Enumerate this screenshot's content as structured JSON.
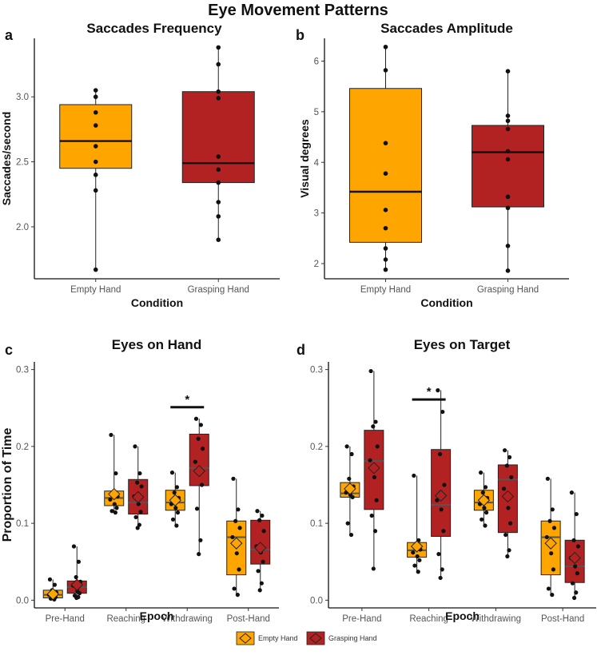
{
  "title": "Eye Movement Patterns",
  "colors": {
    "empty_hand": "#FFA500",
    "grasping_hand": "#B22222",
    "box_stroke": "#222222",
    "mean_line": "#555555"
  },
  "legend": {
    "items": [
      {
        "label": "Empty Hand",
        "color": "#FFA500"
      },
      {
        "label": "Grasping Hand",
        "color": "#B22222"
      }
    ]
  },
  "chart_data": [
    {
      "id": "a",
      "letter": "a",
      "type": "box",
      "title": "Saccades Frequency",
      "xlabel": "Condition",
      "ylabel": "Saccades/second",
      "ylim": [
        1.6,
        3.45
      ],
      "yticks": [
        2.0,
        2.5,
        3.0
      ],
      "ytick_labels": [
        "2.0",
        "2.5",
        "3.0"
      ],
      "categories": [
        "Empty Hand",
        "Grasping Hand"
      ],
      "boxes": [
        {
          "category": "Empty Hand",
          "color": "#FFA500",
          "min": 1.67,
          "q1": 2.45,
          "median": 2.66,
          "q3": 2.94,
          "max": 3.05,
          "points": [
            3.05,
            3.0,
            2.88,
            2.78,
            2.62,
            2.5,
            2.4,
            2.28,
            1.67
          ]
        },
        {
          "category": "Grasping Hand",
          "color": "#B22222",
          "min": 1.9,
          "q1": 2.34,
          "median": 2.49,
          "q3": 3.04,
          "max": 3.38,
          "points": [
            3.38,
            3.25,
            3.04,
            2.99,
            2.54,
            2.44,
            2.34,
            2.19,
            2.08,
            1.9
          ]
        }
      ]
    },
    {
      "id": "b",
      "letter": "b",
      "type": "box",
      "title": "Saccades Amplitude",
      "xlabel": "Condition",
      "ylabel": "Visual degrees",
      "ylim": [
        1.7,
        6.45
      ],
      "yticks": [
        2,
        3,
        4,
        5,
        6
      ],
      "ytick_labels": [
        "2",
        "3",
        "4",
        "5",
        "6"
      ],
      "categories": [
        "Empty Hand",
        "Grasping Hand"
      ],
      "boxes": [
        {
          "category": "Empty Hand",
          "color": "#FFA500",
          "min": 1.88,
          "q1": 2.42,
          "median": 3.42,
          "q3": 5.46,
          "max": 6.28,
          "points": [
            6.28,
            5.82,
            4.38,
            3.78,
            3.06,
            2.7,
            2.3,
            2.08,
            1.88
          ]
        },
        {
          "category": "Grasping Hand",
          "color": "#B22222",
          "min": 1.86,
          "q1": 3.12,
          "median": 4.2,
          "q3": 4.73,
          "max": 5.8,
          "points": [
            5.8,
            4.92,
            4.82,
            4.66,
            4.22,
            4.06,
            3.32,
            3.1,
            2.35,
            1.86
          ]
        }
      ]
    },
    {
      "id": "c",
      "letter": "c",
      "type": "grouped-box",
      "title": "Eyes on Hand",
      "xlabel": "Epoch",
      "ylabel": "Proportion of Time",
      "ylim": [
        -0.01,
        0.31
      ],
      "yticks": [
        0.0,
        0.1,
        0.2,
        0.3
      ],
      "ytick_labels": [
        "0.0",
        "0.1",
        "0.2",
        "0.3"
      ],
      "categories": [
        "Pre-Hand",
        "Reaching",
        "Withdrawing",
        "Post-Hand"
      ],
      "significance": {
        "category": "Withdrawing",
        "label": "*",
        "y": 0.251
      },
      "groups": [
        {
          "category": "Pre-Hand",
          "boxes": [
            {
              "series": "Empty Hand",
              "color": "#FFA500",
              "min": 0.001,
              "q1": 0.003,
              "median": 0.007,
              "q3": 0.013,
              "max": 0.027,
              "mean": 0.008,
              "points": [
                0.027,
                0.02,
                0.013,
                0.01,
                0.007,
                0.005,
                0.004,
                0.002,
                0.001
              ]
            },
            {
              "series": "Grasping Hand",
              "color": "#B22222",
              "min": 0.003,
              "q1": 0.009,
              "median": 0.017,
              "q3": 0.025,
              "max": 0.07,
              "mean": 0.02,
              "points": [
                0.07,
                0.05,
                0.03,
                0.024,
                0.019,
                0.012,
                0.009,
                0.006,
                0.004,
                0.003
              ]
            }
          ]
        },
        {
          "category": "Reaching",
          "boxes": [
            {
              "series": "Empty Hand",
              "color": "#FFA500",
              "min": 0.114,
              "q1": 0.123,
              "median": 0.133,
              "q3": 0.142,
              "max": 0.215,
              "mean": 0.138,
              "points": [
                0.215,
                0.165,
                0.141,
                0.135,
                0.131,
                0.125,
                0.12,
                0.116,
                0.114
              ]
            },
            {
              "series": "Grasping Hand",
              "color": "#B22222",
              "min": 0.094,
              "q1": 0.112,
              "median": 0.127,
              "q3": 0.157,
              "max": 0.2,
              "mean": 0.134,
              "points": [
                0.2,
                0.165,
                0.153,
                0.148,
                0.135,
                0.125,
                0.115,
                0.108,
                0.098,
                0.094
              ]
            }
          ]
        },
        {
          "category": "Withdrawing",
          "boxes": [
            {
              "series": "Empty Hand",
              "color": "#FFA500",
              "min": 0.097,
              "q1": 0.117,
              "median": 0.127,
              "q3": 0.143,
              "max": 0.166,
              "mean": 0.13,
              "points": [
                0.166,
                0.147,
                0.14,
                0.133,
                0.125,
                0.12,
                0.114,
                0.105,
                0.097
              ]
            },
            {
              "series": "Grasping Hand",
              "color": "#B22222",
              "min": 0.06,
              "q1": 0.149,
              "median": 0.172,
              "q3": 0.216,
              "max": 0.236,
              "mean": 0.168,
              "points": [
                0.236,
                0.228,
                0.21,
                0.197,
                0.18,
                0.17,
                0.15,
                0.119,
                0.078,
                0.06
              ]
            }
          ]
        },
        {
          "category": "Post-Hand",
          "boxes": [
            {
              "series": "Empty Hand",
              "color": "#FFA500",
              "min": 0.007,
              "q1": 0.033,
              "median": 0.082,
              "q3": 0.103,
              "max": 0.158,
              "mean": 0.074,
              "points": [
                0.158,
                0.118,
                0.103,
                0.094,
                0.082,
                0.061,
                0.04,
                0.015,
                0.007
              ]
            },
            {
              "series": "Grasping Hand",
              "color": "#B22222",
              "min": 0.013,
              "q1": 0.047,
              "median": 0.066,
              "q3": 0.104,
              "max": 0.116,
              "mean": 0.068,
              "points": [
                0.116,
                0.11,
                0.104,
                0.09,
                0.07,
                0.062,
                0.05,
                0.038,
                0.022,
                0.013
              ]
            }
          ]
        }
      ]
    },
    {
      "id": "d",
      "letter": "d",
      "type": "grouped-box",
      "title": "Eyes on Target",
      "xlabel": "Epoch",
      "ylabel": "",
      "ylim": [
        -0.01,
        0.31
      ],
      "yticks": [
        0.0,
        0.1,
        0.2,
        0.3
      ],
      "ytick_labels": [
        "0.0",
        "0.1",
        "0.2",
        "0.3"
      ],
      "categories": [
        "Pre-Hand",
        "Reaching",
        "Withdrawing",
        "Post-Hand"
      ],
      "significance": {
        "category": "Reaching",
        "label": "*",
        "y": 0.261
      },
      "groups": [
        {
          "category": "Pre-Hand",
          "boxes": [
            {
              "series": "Empty Hand",
              "color": "#FFA500",
              "min": 0.085,
              "q1": 0.134,
              "median": 0.139,
              "q3": 0.153,
              "max": 0.2,
              "mean": 0.145,
              "points": [
                0.2,
                0.19,
                0.158,
                0.148,
                0.14,
                0.137,
                0.134,
                0.1,
                0.085
              ]
            },
            {
              "series": "Grasping Hand",
              "color": "#B22222",
              "min": 0.041,
              "q1": 0.118,
              "median": 0.181,
              "q3": 0.221,
              "max": 0.298,
              "mean": 0.172,
              "points": [
                0.298,
                0.232,
                0.226,
                0.2,
                0.182,
                0.16,
                0.13,
                0.11,
                0.09,
                0.041
              ]
            }
          ]
        },
        {
          "category": "Reaching",
          "boxes": [
            {
              "series": "Empty Hand",
              "color": "#FFA500",
              "min": 0.037,
              "q1": 0.056,
              "median": 0.065,
              "q3": 0.075,
              "max": 0.162,
              "mean": 0.07,
              "points": [
                0.162,
                0.078,
                0.07,
                0.066,
                0.062,
                0.057,
                0.052,
                0.045,
                0.037
              ]
            },
            {
              "series": "Grasping Hand",
              "color": "#B22222",
              "min": 0.029,
              "q1": 0.083,
              "median": 0.124,
              "q3": 0.196,
              "max": 0.273,
              "mean": 0.136,
              "points": [
                0.273,
                0.245,
                0.19,
                0.15,
                0.13,
                0.118,
                0.09,
                0.06,
                0.04,
                0.029
              ]
            }
          ]
        },
        {
          "category": "Withdrawing",
          "boxes": [
            {
              "series": "Empty Hand",
              "color": "#FFA500",
              "min": 0.097,
              "q1": 0.117,
              "median": 0.127,
              "q3": 0.143,
              "max": 0.166,
              "mean": 0.13,
              "points": [
                0.166,
                0.147,
                0.14,
                0.133,
                0.125,
                0.12,
                0.114,
                0.105,
                0.097
              ]
            },
            {
              "series": "Grasping Hand",
              "color": "#B22222",
              "min": 0.057,
              "q1": 0.088,
              "median": 0.157,
              "q3": 0.176,
              "max": 0.195,
              "mean": 0.135,
              "points": [
                0.195,
                0.186,
                0.175,
                0.16,
                0.145,
                0.12,
                0.1,
                0.085,
                0.065,
                0.057
              ]
            }
          ]
        },
        {
          "category": "Post-Hand",
          "boxes": [
            {
              "series": "Empty Hand",
              "color": "#FFA500",
              "min": 0.007,
              "q1": 0.033,
              "median": 0.082,
              "q3": 0.103,
              "max": 0.158,
              "mean": 0.074,
              "points": [
                0.158,
                0.118,
                0.103,
                0.094,
                0.082,
                0.061,
                0.04,
                0.015,
                0.007
              ]
            },
            {
              "series": "Grasping Hand",
              "color": "#B22222",
              "min": 0.003,
              "q1": 0.023,
              "median": 0.044,
              "q3": 0.078,
              "max": 0.14,
              "mean": 0.055,
              "points": [
                0.14,
                0.112,
                0.078,
                0.07,
                0.055,
                0.044,
                0.035,
                0.022,
                0.01,
                0.003
              ]
            }
          ]
        }
      ]
    }
  ]
}
